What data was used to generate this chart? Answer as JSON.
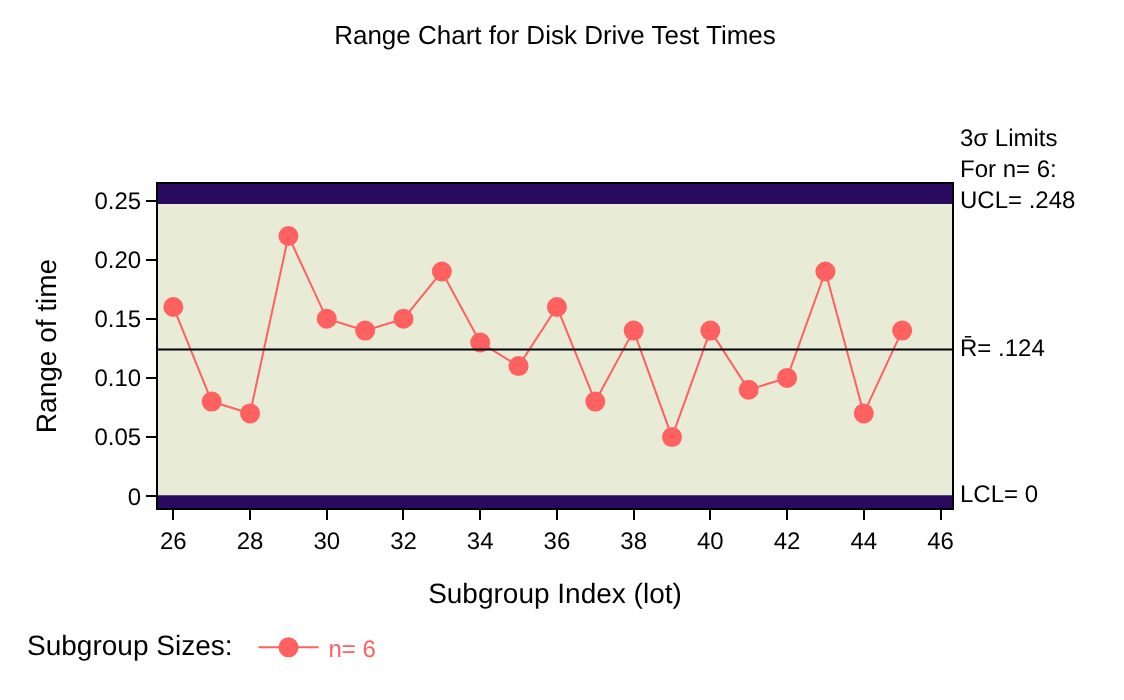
{
  "chart_data": {
    "type": "line",
    "title": "Range Chart for Disk Drive Test Times",
    "xlabel": "Subgroup Index (lot)",
    "ylabel": "Range of time",
    "legend_title": "Subgroup Sizes:",
    "x": [
      26,
      27,
      28,
      29,
      30,
      31,
      32,
      33,
      34,
      35,
      36,
      37,
      38,
      39,
      40,
      41,
      42,
      43,
      44,
      45
    ],
    "series": [
      {
        "name": "n= 6",
        "color": "#ff6060",
        "values": [
          0.16,
          0.08,
          0.07,
          0.22,
          0.15,
          0.14,
          0.15,
          0.19,
          0.13,
          0.11,
          0.16,
          0.08,
          0.14,
          0.05,
          0.14,
          0.09,
          0.1,
          0.19,
          0.07,
          0.14
        ]
      }
    ],
    "marker": "circle",
    "line_style": "solid",
    "grid": false,
    "legend": "bottom left",
    "xlim": [
      25.6,
      46.3
    ],
    "xticks": [
      26,
      28,
      30,
      32,
      34,
      36,
      38,
      40,
      42,
      44,
      46
    ],
    "ylim": [
      -0.01,
      0.264
    ],
    "yticks": [
      0,
      0.05,
      {
        "value": 0.1,
        "label": "0.10"
      },
      0.15,
      {
        "value": 0.2,
        "label": "0.20"
      },
      0.25
    ],
    "ref_lines": [
      {
        "axis": "y",
        "value": 0.248,
        "label": "3σ Limits\nFor n= 6:\nUCL= .248",
        "color": "#2a0a5e"
      },
      {
        "axis": "y",
        "value": 0.124,
        "label": "R̄= .124",
        "color": "#000000"
      },
      {
        "axis": "y",
        "value": 0,
        "label": "LCL= 0",
        "color": "#2a0a5e"
      }
    ],
    "bands": [
      {
        "axis": "y",
        "from": 0.248,
        "to": 0.264,
        "color": "#2a0a5e"
      },
      {
        "axis": "y",
        "from": -0.01,
        "to": 0,
        "color": "#2a0a5e"
      }
    ]
  }
}
